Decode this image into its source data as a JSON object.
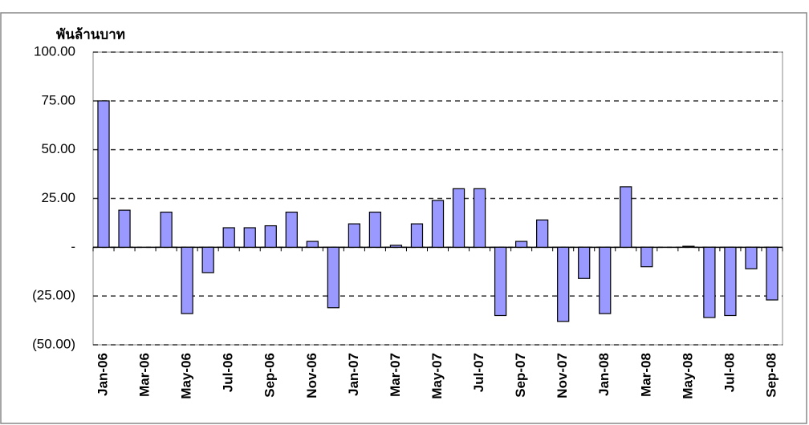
{
  "chart_data": {
    "type": "bar",
    "y_axis_label": "พันล้านบาท",
    "categories": [
      "Jan-06",
      null,
      "Mar-06",
      null,
      "May-06",
      null,
      "Jul-06",
      null,
      "Sep-06",
      null,
      "Nov-06",
      null,
      "Jan-07",
      null,
      "Mar-07",
      null,
      "May-07",
      null,
      "Jul-07",
      null,
      "Sep-07",
      null,
      "Nov-07",
      null,
      "Jan-08",
      null,
      "Mar-08",
      null,
      "May-08",
      null,
      "Jul-08",
      null,
      "Sep-08"
    ],
    "values": [
      75,
      19,
      0,
      18,
      -34,
      -13,
      10,
      10,
      11,
      18,
      3,
      -31,
      12,
      18,
      1,
      12,
      24,
      30,
      30,
      -35,
      3,
      14,
      -38,
      -16,
      -34,
      31,
      -10,
      0,
      0.5,
      -36,
      -35,
      -11,
      -27
    ],
    "color": "#9999ff",
    "ylim": [
      -50,
      100
    ],
    "yticks": [
      {
        "value": -50,
        "label": "(50.00)"
      },
      {
        "value": -25,
        "label": "(25.00)"
      },
      {
        "value": 0,
        "label": "-"
      },
      {
        "value": 25,
        "label": "25.00"
      },
      {
        "value": 50,
        "label": "50.00"
      },
      {
        "value": 75,
        "label": "75.00"
      },
      {
        "value": 100,
        "label": "100.00"
      }
    ],
    "grid": true
  }
}
